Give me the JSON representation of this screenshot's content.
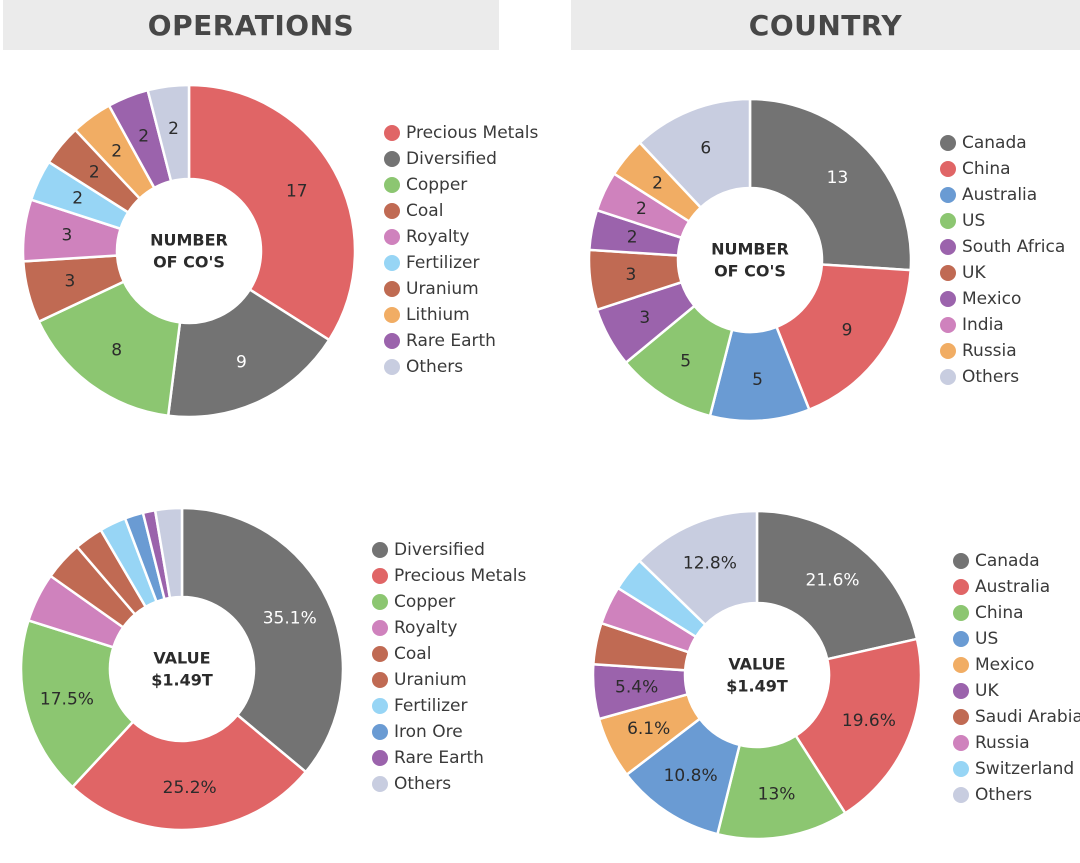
{
  "headers": {
    "operations": "OPERATIONS",
    "country": "COUNTRY"
  },
  "chart_data": [
    {
      "type": "pie",
      "id": "ops-count",
      "center_label": [
        "NUMBER",
        "OF CO'S"
      ],
      "slices": [
        {
          "label": "Precious Metals",
          "value": 17,
          "display": "17",
          "color": "#e06566",
          "text_color": "#2b2b2b"
        },
        {
          "label": "Diversified",
          "value": 9,
          "display": "9",
          "color": "#737373",
          "text_color": "#ffffff"
        },
        {
          "label": "Copper",
          "value": 8,
          "display": "8",
          "color": "#8cc671",
          "text_color": "#2b2b2b"
        },
        {
          "label": "Coal",
          "value": 3,
          "display": "3",
          "color": "#c06a53",
          "text_color": "#2b2b2b"
        },
        {
          "label": "Royalty",
          "value": 3,
          "display": "3",
          "color": "#cf82bd",
          "text_color": "#2b2b2b"
        },
        {
          "label": "Fertilizer",
          "value": 2,
          "display": "2",
          "color": "#97d5f5",
          "text_color": "#2b2b2b"
        },
        {
          "label": "Uranium",
          "value": 2,
          "display": "2",
          "color": "#bf6b52",
          "text_color": "#2b2b2b"
        },
        {
          "label": "Lithium",
          "value": 2,
          "display": "2",
          "color": "#f1ad64",
          "text_color": "#2b2b2b"
        },
        {
          "label": "Rare Earth",
          "value": 2,
          "display": "2",
          "color": "#9b63ac",
          "text_color": "#2b2b2b"
        },
        {
          "label": "Others",
          "value": 2,
          "display": "2",
          "color": "#c8cde0",
          "text_color": "#2b2b2b"
        }
      ],
      "legend": [
        "Precious Metals",
        "Diversified",
        "Copper",
        "Coal",
        "Royalty",
        "Fertilizer",
        "Uranium",
        "Lithium",
        "Rare Earth",
        "Others"
      ]
    },
    {
      "type": "pie",
      "id": "country-count",
      "center_label": [
        "NUMBER",
        "OF CO'S"
      ],
      "slices": [
        {
          "label": "Canada",
          "value": 13,
          "display": "13",
          "color": "#737373",
          "text_color": "#ffffff"
        },
        {
          "label": "China",
          "value": 9,
          "display": "9",
          "color": "#e06566",
          "text_color": "#2b2b2b"
        },
        {
          "label": "Australia",
          "value": 5,
          "display": "5",
          "color": "#6a9bd3",
          "text_color": "#2b2b2b"
        },
        {
          "label": "US",
          "value": 5,
          "display": "5",
          "color": "#8cc671",
          "text_color": "#2b2b2b"
        },
        {
          "label": "South Africa",
          "value": 3,
          "display": "3",
          "color": "#9b63ac",
          "text_color": "#2b2b2b"
        },
        {
          "label": "UK",
          "value": 3,
          "display": "3",
          "color": "#c06a53",
          "text_color": "#2b2b2b"
        },
        {
          "label": "Mexico",
          "value": 2,
          "display": "2",
          "color": "#9b63ac",
          "text_color": "#2b2b2b"
        },
        {
          "label": "India",
          "value": 2,
          "display": "2",
          "color": "#cf82bd",
          "text_color": "#2b2b2b"
        },
        {
          "label": "Russia",
          "value": 2,
          "display": "2",
          "color": "#f1ad64",
          "text_color": "#2b2b2b"
        },
        {
          "label": "Others",
          "value": 6,
          "display": "6",
          "color": "#c8cde0",
          "text_color": "#2b2b2b"
        }
      ],
      "legend": [
        "Canada",
        "China",
        "Australia",
        "US",
        "South Africa",
        "UK",
        "Mexico",
        "India",
        "Russia",
        "Others"
      ]
    },
    {
      "type": "pie",
      "id": "ops-value",
      "center_label": [
        "VALUE",
        "$1.49T"
      ],
      "slices": [
        {
          "label": "Diversified",
          "value": 35.1,
          "display": "35.1%",
          "color": "#737373",
          "text_color": "#ffffff"
        },
        {
          "label": "Precious Metals",
          "value": 25.2,
          "display": "25.2%",
          "color": "#e06566",
          "text_color": "#2b2b2b"
        },
        {
          "label": "Copper",
          "value": 17.5,
          "display": "17.5%",
          "color": "#8cc671",
          "text_color": "#2b2b2b"
        },
        {
          "label": "Royalty",
          "value": 4.8,
          "display": "",
          "color": "#cf82bd",
          "text_color": "#2b2b2b"
        },
        {
          "label": "Coal",
          "value": 3.8,
          "display": "",
          "color": "#c06a53",
          "text_color": "#2b2b2b"
        },
        {
          "label": "Uranium",
          "value": 2.8,
          "display": "",
          "color": "#c06a53",
          "text_color": "#2b2b2b"
        },
        {
          "label": "Fertilizer",
          "value": 2.6,
          "display": "",
          "color": "#97d5f5",
          "text_color": "#2b2b2b"
        },
        {
          "label": "Iron Ore",
          "value": 1.8,
          "display": "",
          "color": "#6a9bd3",
          "text_color": "#2b2b2b"
        },
        {
          "label": "Rare Earth",
          "value": 1.2,
          "display": "",
          "color": "#9b63ac",
          "text_color": "#2b2b2b"
        },
        {
          "label": "Others",
          "value": 2.6,
          "display": "",
          "color": "#c8cde0",
          "text_color": "#2b2b2b"
        }
      ],
      "legend": [
        "Diversified",
        "Precious Metals",
        "Copper",
        "Royalty",
        "Coal",
        "Uranium",
        "Fertilizer",
        "Iron Ore",
        "Rare Earth",
        "Others"
      ]
    },
    {
      "type": "pie",
      "id": "country-value",
      "center_label": [
        "VALUE",
        "$1.49T"
      ],
      "slices": [
        {
          "label": "Canada",
          "value": 21.6,
          "display": "21.6%",
          "color": "#737373",
          "text_color": "#ffffff"
        },
        {
          "label": "Australia",
          "value": 19.6,
          "display": "19.6%",
          "color": "#e06566",
          "text_color": "#2b2b2b"
        },
        {
          "label": "China",
          "value": 13,
          "display": "13%",
          "color": "#8cc671",
          "text_color": "#2b2b2b"
        },
        {
          "label": "US",
          "value": 10.8,
          "display": "10.8%",
          "color": "#6a9bd3",
          "text_color": "#2b2b2b"
        },
        {
          "label": "Mexico",
          "value": 6.1,
          "display": "6.1%",
          "color": "#f1ad64",
          "text_color": "#2b2b2b"
        },
        {
          "label": "UK",
          "value": 5.4,
          "display": "5.4%",
          "color": "#9b63ac",
          "text_color": "#2b2b2b"
        },
        {
          "label": "Saudi Arabia",
          "value": 4.1,
          "display": "",
          "color": "#c06a53",
          "text_color": "#2b2b2b"
        },
        {
          "label": "Russia",
          "value": 3.8,
          "display": "",
          "color": "#cf82bd",
          "text_color": "#2b2b2b"
        },
        {
          "label": "Switzerland",
          "value": 3.4,
          "display": "",
          "color": "#97d5f5",
          "text_color": "#2b2b2b"
        },
        {
          "label": "Others",
          "value": 12.8,
          "display": "12.8%",
          "color": "#c8cde0",
          "text_color": "#2b2b2b"
        }
      ],
      "legend": [
        "Canada",
        "Australia",
        "China",
        "US",
        "Mexico",
        "UK",
        "Saudi Arabia",
        "Russia",
        "Switzerland",
        "Others"
      ]
    }
  ]
}
